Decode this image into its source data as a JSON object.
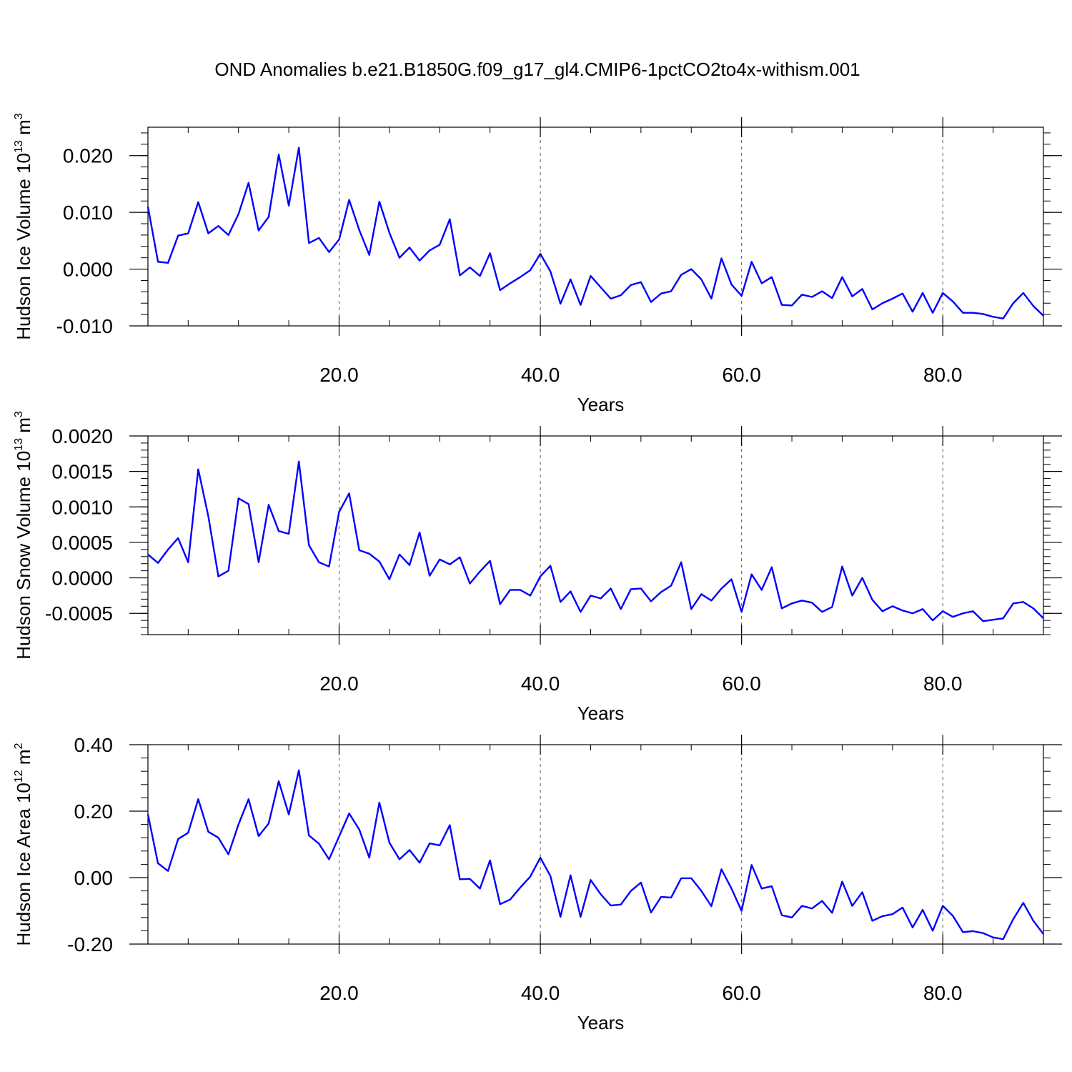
{
  "title": "OND Anomalies b.e21.B1850G.f09_g17_gl4.CMIP6-1pctCO2to4x-withism.001",
  "colors": {
    "series": "#0000ff",
    "axis": "#000000",
    "grid": "#555555",
    "background": "#ffffff"
  },
  "chart_data": [
    {
      "type": "line",
      "title": "",
      "xlabel": "Years",
      "ylabel": "Hudson Ice Volume 10",
      "ylabel_exponent": "13",
      "ylabel_unit": " m",
      "ylabel_unit_exponent": "3",
      "xlim": [
        1,
        90
      ],
      "ylim": [
        -0.01,
        0.025
      ],
      "xticks": [
        20,
        40,
        60,
        80
      ],
      "xtick_labels": [
        "20.0",
        "40.0",
        "60.0",
        "80.0"
      ],
      "yticks": [
        -0.01,
        0.0,
        0.01,
        0.02
      ],
      "ytick_labels": [
        "-0.010",
        "0.000",
        "0.010",
        "0.020"
      ],
      "grid": "vertical dashed at x ticks",
      "series": [
        {
          "x": [
            1,
            2,
            3,
            4,
            5,
            6,
            7,
            8,
            9,
            10,
            11,
            12,
            13,
            14,
            15,
            16,
            17,
            18,
            19,
            20,
            21,
            22,
            23,
            24,
            25,
            26,
            27,
            28,
            29,
            30,
            31,
            32,
            33,
            34,
            35,
            36,
            37,
            38,
            39,
            40,
            41,
            42,
            43,
            44,
            45,
            46,
            47,
            48,
            49,
            50,
            51,
            52,
            53,
            54,
            55,
            56,
            57,
            58,
            59,
            60,
            61,
            62,
            63,
            64,
            65,
            66,
            67,
            68,
            69,
            70,
            71,
            72,
            73,
            74,
            75,
            76,
            77,
            78,
            79,
            80,
            81,
            82,
            83,
            84,
            85,
            86,
            87,
            88,
            89,
            90
          ],
          "values": [
            0.011,
            0.0013,
            0.0011,
            0.0059,
            0.0063,
            0.0118,
            0.0063,
            0.0076,
            0.006,
            0.0097,
            0.0152,
            0.0068,
            0.0092,
            0.0202,
            0.0112,
            0.0214,
            0.0046,
            0.0055,
            0.003,
            0.0052,
            0.0122,
            0.0069,
            0.0025,
            0.0119,
            0.0064,
            0.002,
            0.0038,
            0.0015,
            0.0033,
            0.0043,
            0.0088,
            -0.0011,
            0.0003,
            -0.0012,
            0.0028,
            -0.0037,
            -0.0025,
            -0.0014,
            -0.0002,
            0.0027,
            -0.0004,
            -0.0061,
            -0.0018,
            -0.0063,
            -0.0012,
            -0.0032,
            -0.0052,
            -0.0046,
            -0.0028,
            -0.0023,
            -0.0058,
            -0.0043,
            -0.0039,
            -0.001,
            0.0,
            -0.0018,
            -0.0052,
            0.0019,
            -0.0027,
            -0.0047,
            0.0013,
            -0.0025,
            -0.0014,
            -0.0063,
            -0.0064,
            -0.0045,
            -0.0049,
            -0.0039,
            -0.0051,
            -0.0014,
            -0.0048,
            -0.0035,
            -0.0071,
            -0.006,
            -0.0052,
            -0.0043,
            -0.0075,
            -0.0042,
            -0.0077,
            -0.0042,
            -0.0057,
            -0.0077,
            -0.0077,
            -0.0079,
            -0.0084,
            -0.0087,
            -0.006,
            -0.0042,
            -0.0065,
            -0.0082
          ]
        }
      ]
    },
    {
      "type": "line",
      "title": "",
      "xlabel": "Years",
      "ylabel": "Hudson Snow Volume 10",
      "ylabel_exponent": "13",
      "ylabel_unit": " m",
      "ylabel_unit_exponent": "3",
      "xlim": [
        1,
        90
      ],
      "ylim": [
        -0.0008,
        0.002
      ],
      "xticks": [
        20,
        40,
        60,
        80
      ],
      "xtick_labels": [
        "20.0",
        "40.0",
        "60.0",
        "80.0"
      ],
      "yticks": [
        -0.0005,
        0.0,
        0.0005,
        0.001,
        0.0015,
        0.002
      ],
      "ytick_labels": [
        "-0.0005",
        "0.0000",
        "0.0005",
        "0.0010",
        "0.0015",
        "0.0020"
      ],
      "grid": "vertical dashed at x ticks",
      "series": [
        {
          "x": [
            1,
            2,
            3,
            4,
            5,
            6,
            7,
            8,
            9,
            10,
            11,
            12,
            13,
            14,
            15,
            16,
            17,
            18,
            19,
            20,
            21,
            22,
            23,
            24,
            25,
            26,
            27,
            28,
            29,
            30,
            31,
            32,
            33,
            34,
            35,
            36,
            37,
            38,
            39,
            40,
            41,
            42,
            43,
            44,
            45,
            46,
            47,
            48,
            49,
            50,
            51,
            52,
            53,
            54,
            55,
            56,
            57,
            58,
            59,
            60,
            61,
            62,
            63,
            64,
            65,
            66,
            67,
            68,
            69,
            70,
            71,
            72,
            73,
            74,
            75,
            76,
            77,
            78,
            79,
            80,
            81,
            82,
            83,
            84,
            85,
            86,
            87,
            88,
            89,
            90
          ],
          "values": [
            0.00033,
            0.00021,
            0.0004,
            0.00056,
            0.00022,
            0.00153,
            0.00087,
            2e-05,
            0.0001,
            0.00112,
            0.00104,
            0.00022,
            0.00103,
            0.00066,
            0.00062,
            0.00164,
            0.00046,
            0.00022,
            0.00016,
            0.00093,
            0.00119,
            0.00039,
            0.00034,
            0.00023,
            -2e-05,
            0.00033,
            0.00018,
            0.00064,
            3e-05,
            0.00026,
            0.00019,
            0.00029,
            -8e-05,
            9e-05,
            0.00024,
            -0.00037,
            -0.00017,
            -0.00017,
            -0.00025,
            2e-05,
            0.00017,
            -0.00034,
            -0.00019,
            -0.00048,
            -0.00025,
            -0.00029,
            -0.00015,
            -0.00044,
            -0.00016,
            -0.00015,
            -0.00033,
            -0.0002,
            -0.00011,
            0.00022,
            -0.00044,
            -0.00023,
            -0.00032,
            -0.00015,
            -2e-05,
            -0.00048,
            5e-05,
            -0.00017,
            0.00015,
            -0.00043,
            -0.00036,
            -0.00032,
            -0.00035,
            -0.00048,
            -0.00041,
            0.00016,
            -0.00025,
            0.0,
            -0.00031,
            -0.00047,
            -0.0004,
            -0.00046,
            -0.0005,
            -0.00044,
            -0.0006,
            -0.00047,
            -0.00055,
            -0.0005,
            -0.00047,
            -0.00061,
            -0.00059,
            -0.00057,
            -0.00036,
            -0.00034,
            -0.00043,
            -0.00057
          ]
        }
      ]
    },
    {
      "type": "line",
      "title": "",
      "xlabel": "Years",
      "ylabel": "Hudson Ice Area 10",
      "ylabel_exponent": "12",
      "ylabel_unit": " m",
      "ylabel_unit_exponent": "2",
      "xlim": [
        1,
        90
      ],
      "ylim": [
        -0.2,
        0.4
      ],
      "xticks": [
        20,
        40,
        60,
        80
      ],
      "xtick_labels": [
        "20.0",
        "40.0",
        "60.0",
        "80.0"
      ],
      "yticks": [
        -0.2,
        0.0,
        0.2,
        0.4
      ],
      "ytick_labels": [
        "-0.20",
        "0.00",
        "0.20",
        "0.40"
      ],
      "grid": "vertical dashed at x ticks",
      "series": [
        {
          "x": [
            1,
            2,
            3,
            4,
            5,
            6,
            7,
            8,
            9,
            10,
            11,
            12,
            13,
            14,
            15,
            16,
            17,
            18,
            19,
            20,
            21,
            22,
            23,
            24,
            25,
            26,
            27,
            28,
            29,
            30,
            31,
            32,
            33,
            34,
            35,
            36,
            37,
            38,
            39,
            40,
            41,
            42,
            43,
            44,
            45,
            46,
            47,
            48,
            49,
            50,
            51,
            52,
            53,
            54,
            55,
            56,
            57,
            58,
            59,
            60,
            61,
            62,
            63,
            64,
            65,
            66,
            67,
            68,
            69,
            70,
            71,
            72,
            73,
            74,
            75,
            76,
            77,
            78,
            79,
            80,
            81,
            82,
            83,
            84,
            85,
            86,
            87,
            88,
            89,
            90
          ],
          "values": [
            0.19,
            0.043,
            0.02,
            0.116,
            0.135,
            0.236,
            0.138,
            0.12,
            0.07,
            0.16,
            0.236,
            0.125,
            0.163,
            0.29,
            0.19,
            0.323,
            0.127,
            0.102,
            0.055,
            0.124,
            0.193,
            0.145,
            0.06,
            0.226,
            0.105,
            0.055,
            0.083,
            0.045,
            0.103,
            0.097,
            0.158,
            -0.005,
            -0.004,
            -0.033,
            0.052,
            -0.08,
            -0.066,
            -0.03,
            0.003,
            0.06,
            0.005,
            -0.118,
            0.007,
            -0.118,
            -0.007,
            -0.05,
            -0.084,
            -0.081,
            -0.04,
            -0.015,
            -0.105,
            -0.058,
            -0.06,
            -0.002,
            -0.002,
            -0.04,
            -0.086,
            0.025,
            -0.033,
            -0.1,
            0.038,
            -0.033,
            -0.026,
            -0.113,
            -0.12,
            -0.085,
            -0.093,
            -0.07,
            -0.106,
            -0.012,
            -0.085,
            -0.044,
            -0.13,
            -0.116,
            -0.11,
            -0.09,
            -0.15,
            -0.097,
            -0.16,
            -0.085,
            -0.115,
            -0.164,
            -0.161,
            -0.167,
            -0.18,
            -0.185,
            -0.125,
            -0.076,
            -0.13,
            -0.17
          ]
        }
      ]
    }
  ]
}
